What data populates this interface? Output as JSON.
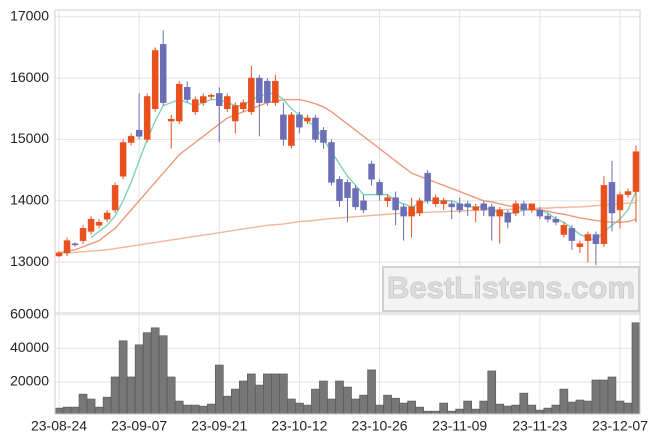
{
  "watermark": "BestListens.com",
  "chart_data": [
    {
      "type": "candlestick",
      "up_color": "#e8501e",
      "down_color": "#6b6fb5",
      "open": [
        13100,
        13150,
        13300,
        13350,
        13500,
        13600,
        13700,
        13850,
        14400,
        14950,
        15150,
        15000,
        15500,
        16550,
        15300,
        15300,
        15850,
        15450,
        15600,
        15700,
        15750,
        15500,
        15300,
        15500,
        15450,
        16000,
        15950,
        15600,
        15400,
        14900,
        15400,
        15300,
        15350,
        15150,
        14950,
        14350,
        14300,
        14200,
        14000,
        14600,
        14300,
        14000,
        14050,
        13900,
        13750,
        13800,
        14450,
        13950,
        13950,
        13950,
        13950,
        13950,
        13850,
        13950,
        13900,
        13750,
        13800,
        13800,
        13950,
        13850,
        13850,
        13750,
        13700,
        13450,
        13550,
        13250,
        13350,
        13450,
        13300,
        14300,
        13850,
        14100,
        14150
      ],
      "high": [
        13180,
        13400,
        13320,
        13600,
        13750,
        13700,
        13850,
        14300,
        15000,
        15100,
        15750,
        15750,
        16500,
        16780,
        15400,
        15950,
        15950,
        15700,
        15750,
        15750,
        15850,
        15750,
        15600,
        15650,
        16200,
        16050,
        16000,
        16050,
        15600,
        15450,
        15450,
        15400,
        15400,
        15200,
        15000,
        14400,
        14350,
        14250,
        14100,
        14650,
        14350,
        14100,
        14150,
        13950,
        14050,
        14050,
        14500,
        14100,
        14050,
        14000,
        14050,
        14000,
        13950,
        14000,
        13950,
        13900,
        13850,
        14000,
        14000,
        13950,
        13900,
        13800,
        13750,
        13650,
        13600,
        13350,
        13500,
        13500,
        14400,
        14650,
        14150,
        14200,
        14900
      ],
      "low": [
        13080,
        13100,
        13250,
        13300,
        13450,
        13550,
        13650,
        13800,
        14350,
        14900,
        15000,
        14950,
        15450,
        15550,
        14850,
        15250,
        15600,
        15400,
        15550,
        15650,
        14950,
        15450,
        15100,
        15450,
        15400,
        15050,
        15550,
        15550,
        14900,
        14850,
        15100,
        15250,
        14950,
        14850,
        14250,
        13900,
        13650,
        13850,
        13800,
        14250,
        14000,
        13900,
        13600,
        13350,
        13400,
        13750,
        13950,
        13900,
        13850,
        13700,
        13800,
        13750,
        13650,
        13750,
        13350,
        13300,
        13550,
        13750,
        13750,
        13800,
        13700,
        13650,
        13600,
        13400,
        13200,
        13150,
        13000,
        12950,
        13250,
        13500,
        13550,
        14050,
        13650
      ],
      "close": [
        13150,
        13350,
        13280,
        13550,
        13700,
        13650,
        13800,
        14250,
        14950,
        15050,
        15050,
        15700,
        16450,
        15600,
        15330,
        15900,
        15650,
        15650,
        15700,
        15720,
        15550,
        15700,
        15550,
        15600,
        16000,
        15600,
        15600,
        15950,
        15000,
        15400,
        15200,
        15350,
        15000,
        14950,
        14300,
        14000,
        14050,
        13900,
        13850,
        14350,
        14100,
        14050,
        13850,
        13750,
        13900,
        14000,
        14000,
        14050,
        14000,
        13900,
        13850,
        13900,
        13900,
        13850,
        13750,
        13850,
        13650,
        13950,
        13850,
        13950,
        13750,
        13700,
        13650,
        13600,
        13350,
        13300,
        13450,
        13300,
        14250,
        13800,
        14100,
        14150,
        14800
      ],
      "lines": [
        {
          "color": "#7fd3b4",
          "values": [
            null,
            null,
            null,
            null,
            13400,
            13500,
            13600,
            13750,
            14000,
            14300,
            14650,
            15000,
            15300,
            15550,
            15600,
            15650,
            15600,
            15550,
            15600,
            15650,
            15650,
            15600,
            15550,
            15550,
            15650,
            15700,
            15750,
            15750,
            15650,
            15500,
            15400,
            15300,
            15200,
            15000,
            14800,
            14600,
            14400,
            14250,
            14100,
            14100,
            14100,
            14100,
            14000,
            13950,
            13900,
            13950,
            14000,
            14000,
            14000,
            14000,
            13950,
            13900,
            13900,
            13900,
            13850,
            13800,
            13800,
            13800,
            13850,
            13850,
            13850,
            13800,
            13700,
            13650,
            13550,
            13450,
            13400,
            13350,
            13500,
            13600,
            13700,
            13850,
            14150
          ]
        },
        {
          "color": "#ec9a7a",
          "values": [
            13150,
            13180,
            13200,
            13250,
            13300,
            13350,
            13450,
            13550,
            13700,
            13850,
            14000,
            14150,
            14300,
            14450,
            14600,
            14750,
            14850,
            14950,
            15050,
            15150,
            15250,
            15350,
            15400,
            15450,
            15500,
            15550,
            15600,
            15620,
            15650,
            15650,
            15650,
            15620,
            15580,
            15530,
            15450,
            15350,
            15250,
            15150,
            15050,
            14950,
            14850,
            14750,
            14650,
            14550,
            14450,
            14400,
            14350,
            14300,
            14250,
            14200,
            14150,
            14100,
            14050,
            14000,
            13980,
            13950,
            13920,
            13900,
            13880,
            13860,
            13850,
            13830,
            13800,
            13780,
            13750,
            13720,
            13700,
            13680,
            13660,
            13650,
            13650,
            13660,
            13700
          ]
        },
        {
          "color": "#f0b896",
          "values": [
            13150,
            13150,
            13160,
            13170,
            13180,
            13190,
            13200,
            13220,
            13240,
            13260,
            13280,
            13300,
            13320,
            13340,
            13360,
            13380,
            13400,
            13420,
            13440,
            13460,
            13480,
            13500,
            13520,
            13540,
            13560,
            13580,
            13600,
            13610,
            13620,
            13640,
            13660,
            13670,
            13680,
            13700,
            13710,
            13720,
            13730,
            13740,
            13750,
            13760,
            13770,
            13780,
            13790,
            13800,
            13800,
            13810,
            13810,
            13820,
            13820,
            13830,
            13830,
            13840,
            13840,
            13850,
            13850,
            13850,
            13860,
            13860,
            13870,
            13870,
            13880,
            13880,
            13890,
            13890,
            13900,
            13900,
            13910,
            13920,
            13930,
            13940,
            13950,
            13960,
            13970
          ]
        }
      ],
      "ylim": [
        12170,
        17110
      ],
      "yticks": [
        13000,
        14000,
        15000,
        16000,
        17000
      ],
      "grid": true
    },
    {
      "type": "bar",
      "categories": [
        "23-08-24",
        null,
        null,
        null,
        null,
        null,
        null,
        null,
        null,
        null,
        "23-09-07",
        null,
        null,
        null,
        null,
        null,
        null,
        null,
        null,
        null,
        "23-09-21",
        null,
        null,
        null,
        null,
        null,
        null,
        null,
        null,
        null,
        "23-10-12",
        null,
        null,
        null,
        null,
        null,
        null,
        null,
        null,
        null,
        "23-10-26",
        null,
        null,
        null,
        null,
        null,
        null,
        null,
        null,
        null,
        "23-11-09",
        null,
        null,
        null,
        null,
        null,
        null,
        null,
        null,
        null,
        "23-11-23",
        null,
        null,
        null,
        null,
        null,
        null,
        null,
        null,
        null,
        "23-12-07",
        null,
        null
      ],
      "values": [
        4500,
        5100,
        5100,
        12800,
        9900,
        5100,
        11000,
        23000,
        44500,
        23000,
        42100,
        49300,
        52200,
        47500,
        23000,
        8700,
        6300,
        6300,
        5700,
        6900,
        30100,
        11600,
        15800,
        20600,
        24800,
        18200,
        24800,
        24800,
        24800,
        9900,
        7500,
        6300,
        15800,
        20600,
        9900,
        20600,
        17000,
        9900,
        12200,
        27200,
        6300,
        12200,
        10400,
        7500,
        8700,
        5100,
        2700,
        2700,
        7500,
        2700,
        3900,
        8700,
        3900,
        8700,
        26600,
        6900,
        5700,
        6300,
        13400,
        6300,
        3300,
        4500,
        6300,
        15800,
        8100,
        9300,
        8700,
        21200,
        21200,
        23000,
        8700,
        7500,
        55200
      ],
      "color": "#777777",
      "ylim": [
        1000,
        61000
      ],
      "yticks": [
        20000,
        40000,
        60000
      ],
      "grid": true
    }
  ]
}
